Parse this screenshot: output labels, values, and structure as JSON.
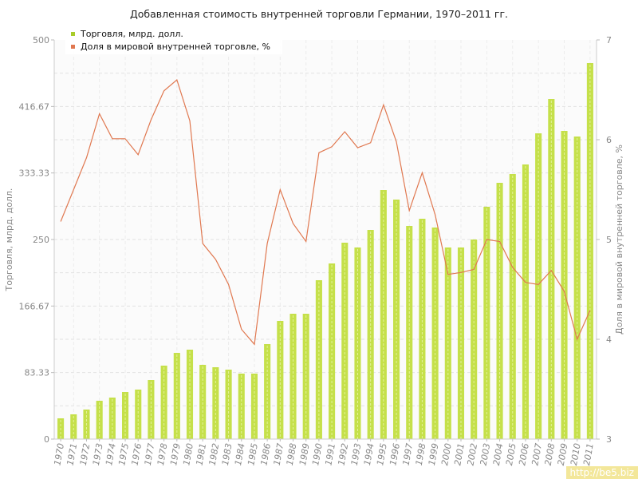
{
  "chart_data": {
    "type": "bar+line",
    "title": "Добавленная стоимость внутренней торговли Германии, 1970–2011 гг.",
    "ylabel": "Торговля, млрд. долл.",
    "y2label": "Доля в мировой внутренней торговле, %",
    "ylim": [
      0,
      500
    ],
    "y2lim": [
      3,
      7
    ],
    "yticks": [
      "0",
      "83.33",
      "166.67",
      "250",
      "333.33",
      "416.67",
      "500"
    ],
    "y2ticks": [
      "3",
      "4",
      "5",
      "6",
      "7"
    ],
    "categories": [
      "1970",
      "1971",
      "1972",
      "1973",
      "1974",
      "1975",
      "1976",
      "1977",
      "1978",
      "1979",
      "1980",
      "1981",
      "1982",
      "1983",
      "1984",
      "1985",
      "1986",
      "1987",
      "1988",
      "1989",
      "1990",
      "1991",
      "1992",
      "1993",
      "1994",
      "1995",
      "1996",
      "1997",
      "1998",
      "1999",
      "2000",
      "2001",
      "2002",
      "2003",
      "2004",
      "2005",
      "2006",
      "2007",
      "2008",
      "2009",
      "2010",
      "2011"
    ],
    "series": [
      {
        "name": "Торговля, млрд. долл.",
        "type": "bar",
        "color": "#c5e04a",
        "values": [
          26,
          31,
          37,
          48,
          52,
          59,
          62,
          74,
          92,
          108,
          112,
          93,
          90,
          87,
          82,
          82,
          119,
          148,
          157,
          157,
          199,
          220,
          246,
          240,
          262,
          312,
          300,
          267,
          276,
          265,
          240,
          240,
          250,
          291,
          321,
          332,
          344,
          383,
          426,
          386,
          379,
          471
        ]
      },
      {
        "name": "Доля в мировой внутренней торговле, %",
        "type": "line",
        "color": "#e07850",
        "values": [
          5.18,
          5.5,
          5.82,
          6.26,
          6.01,
          6.01,
          5.85,
          6.2,
          6.49,
          6.6,
          6.19,
          4.96,
          4.8,
          4.55,
          4.1,
          3.95,
          4.96,
          5.5,
          5.16,
          4.98,
          5.87,
          5.93,
          6.08,
          5.92,
          5.97,
          6.35,
          5.98,
          5.29,
          5.67,
          5.25,
          4.65,
          4.67,
          4.7,
          5.0,
          4.98,
          4.72,
          4.57,
          4.55,
          4.69,
          4.48,
          4.0,
          4.29
        ]
      }
    ],
    "legend_position": "top-left",
    "grid": true
  },
  "watermark": "http://be5.biz"
}
